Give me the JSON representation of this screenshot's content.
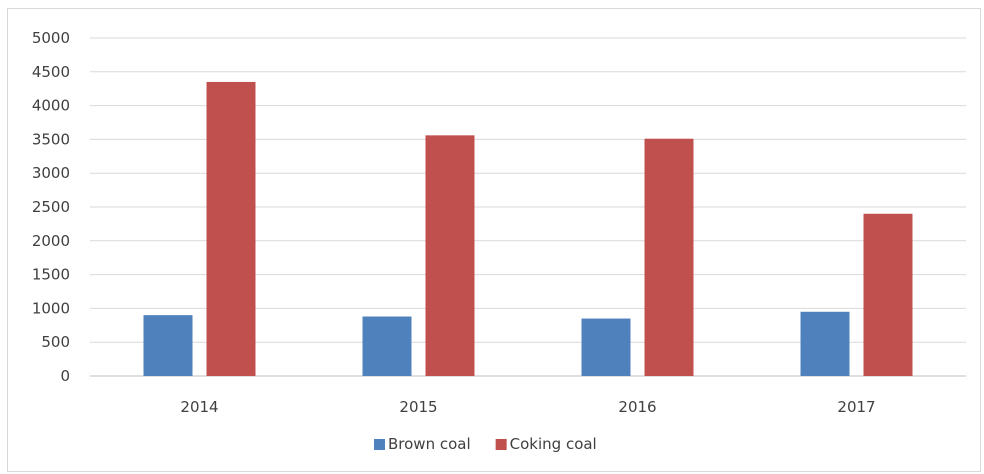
{
  "chart_data": {
    "type": "bar",
    "title": "",
    "xlabel": "",
    "ylabel": "",
    "categories": [
      "2014",
      "2015",
      "2016",
      "2017"
    ],
    "series": [
      {
        "name": "Brown coal",
        "color": "#4f81bd",
        "values": [
          900,
          880,
          850,
          950
        ]
      },
      {
        "name": "Coking coal",
        "color": "#c0504d",
        "values": [
          4350,
          3560,
          3510,
          2400
        ]
      }
    ],
    "ylim": [
      0,
      5000
    ],
    "yticks": [
      "0",
      "500",
      "1000",
      "1500",
      "2000",
      "2500",
      "3000",
      "3500",
      "4000",
      "4500",
      "5000"
    ],
    "grid": true,
    "legend_position": "bottom",
    "colors": {
      "grid": "#d9d9d9",
      "axis": "#bfbfbf",
      "text": "#404040"
    }
  }
}
